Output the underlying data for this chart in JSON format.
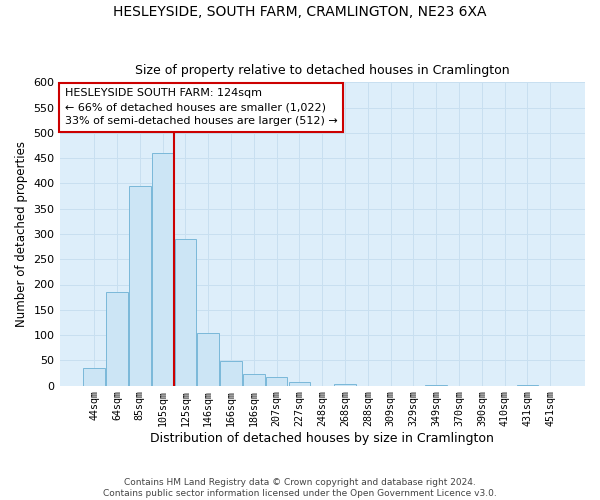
{
  "title": "HESLEYSIDE, SOUTH FARM, CRAMLINGTON, NE23 6XA",
  "subtitle": "Size of property relative to detached houses in Cramlington",
  "xlabel": "Distribution of detached houses by size in Cramlington",
  "ylabel": "Number of detached properties",
  "bar_labels": [
    "44sqm",
    "64sqm",
    "85sqm",
    "105sqm",
    "125sqm",
    "146sqm",
    "166sqm",
    "186sqm",
    "207sqm",
    "227sqm",
    "248sqm",
    "268sqm",
    "288sqm",
    "309sqm",
    "329sqm",
    "349sqm",
    "370sqm",
    "390sqm",
    "410sqm",
    "431sqm",
    "451sqm"
  ],
  "bar_values": [
    35,
    185,
    395,
    460,
    290,
    105,
    48,
    22,
    16,
    8,
    0,
    3,
    0,
    0,
    0,
    1,
    0,
    0,
    0,
    1,
    0
  ],
  "bar_face_color": "#cce5f5",
  "bar_edge_color": "#7ab8d9",
  "vline_x_index": 4,
  "vline_color": "#cc0000",
  "annotation_title": "HESLEYSIDE SOUTH FARM: 124sqm",
  "annotation_line1": "← 66% of detached houses are smaller (1,022)",
  "annotation_line2": "33% of semi-detached houses are larger (512) →",
  "annotation_box_color": "#ffffff",
  "annotation_box_edge": "#cc0000",
  "footer1": "Contains HM Land Registry data © Crown copyright and database right 2024.",
  "footer2": "Contains public sector information licensed under the Open Government Licence v3.0.",
  "ylim": [
    0,
    600
  ],
  "yticks": [
    0,
    50,
    100,
    150,
    200,
    250,
    300,
    350,
    400,
    450,
    500,
    550,
    600
  ],
  "grid_color": "#c8dff0",
  "bg_color": "#ddeefa",
  "title_fontsize": 10,
  "subtitle_fontsize": 9
}
